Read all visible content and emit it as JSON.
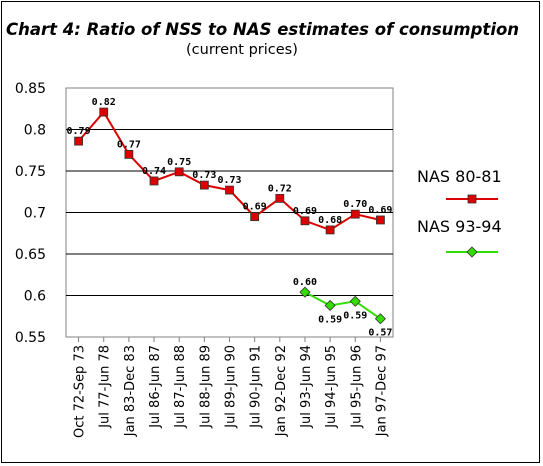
{
  "chart_data": {
    "type": "line",
    "title": "Chart 4: Ratio of NSS to NAS estimates of consumption",
    "subtitle": "(current prices)",
    "categories": [
      "Oct 72-Sep 73",
      "Jul 77-Jun 78",
      "Jan 83-Dec 83",
      "Jul 86-Jun 87",
      "Jul 87-Jun 88",
      "Jul 88-Jun 89",
      "Jul 89-Jun 90",
      "Jul 90-Jun 91",
      "Jan 92-Dec 92",
      "Jul 93-Jun 94",
      "Jul 94-Jun 95",
      "Jul 95-Jun 96",
      "Jan 97-Dec 97"
    ],
    "series": [
      {
        "name": "NAS 80-81",
        "color": "#dd0000",
        "marker": "square",
        "values": [
          0.786,
          0.821,
          0.77,
          0.738,
          0.749,
          0.733,
          0.727,
          0.695,
          0.717,
          0.69,
          0.679,
          0.698,
          0.691
        ],
        "labels": [
          "0.79",
          "0.82",
          "0.77",
          "0.74",
          "0.75",
          "0.73",
          "0.73",
          "0.69",
          "0.72",
          "0.69",
          "0.68",
          "0.70",
          "0.69"
        ]
      },
      {
        "name": "NAS 93-94",
        "color": "#33dd00",
        "marker": "diamond",
        "values": [
          null,
          null,
          null,
          null,
          null,
          null,
          null,
          null,
          null,
          0.604,
          0.588,
          0.593,
          0.572
        ],
        "labels": [
          null,
          null,
          null,
          null,
          null,
          null,
          null,
          null,
          null,
          "0.60",
          "0.59",
          "0.59",
          "0.57"
        ]
      }
    ],
    "ylim": [
      0.55,
      0.85
    ],
    "yticks": [
      "0.55",
      "0.6",
      "0.65",
      "0.7",
      "0.75",
      "0.8",
      "0.85"
    ],
    "grid": true,
    "legend": "right"
  }
}
